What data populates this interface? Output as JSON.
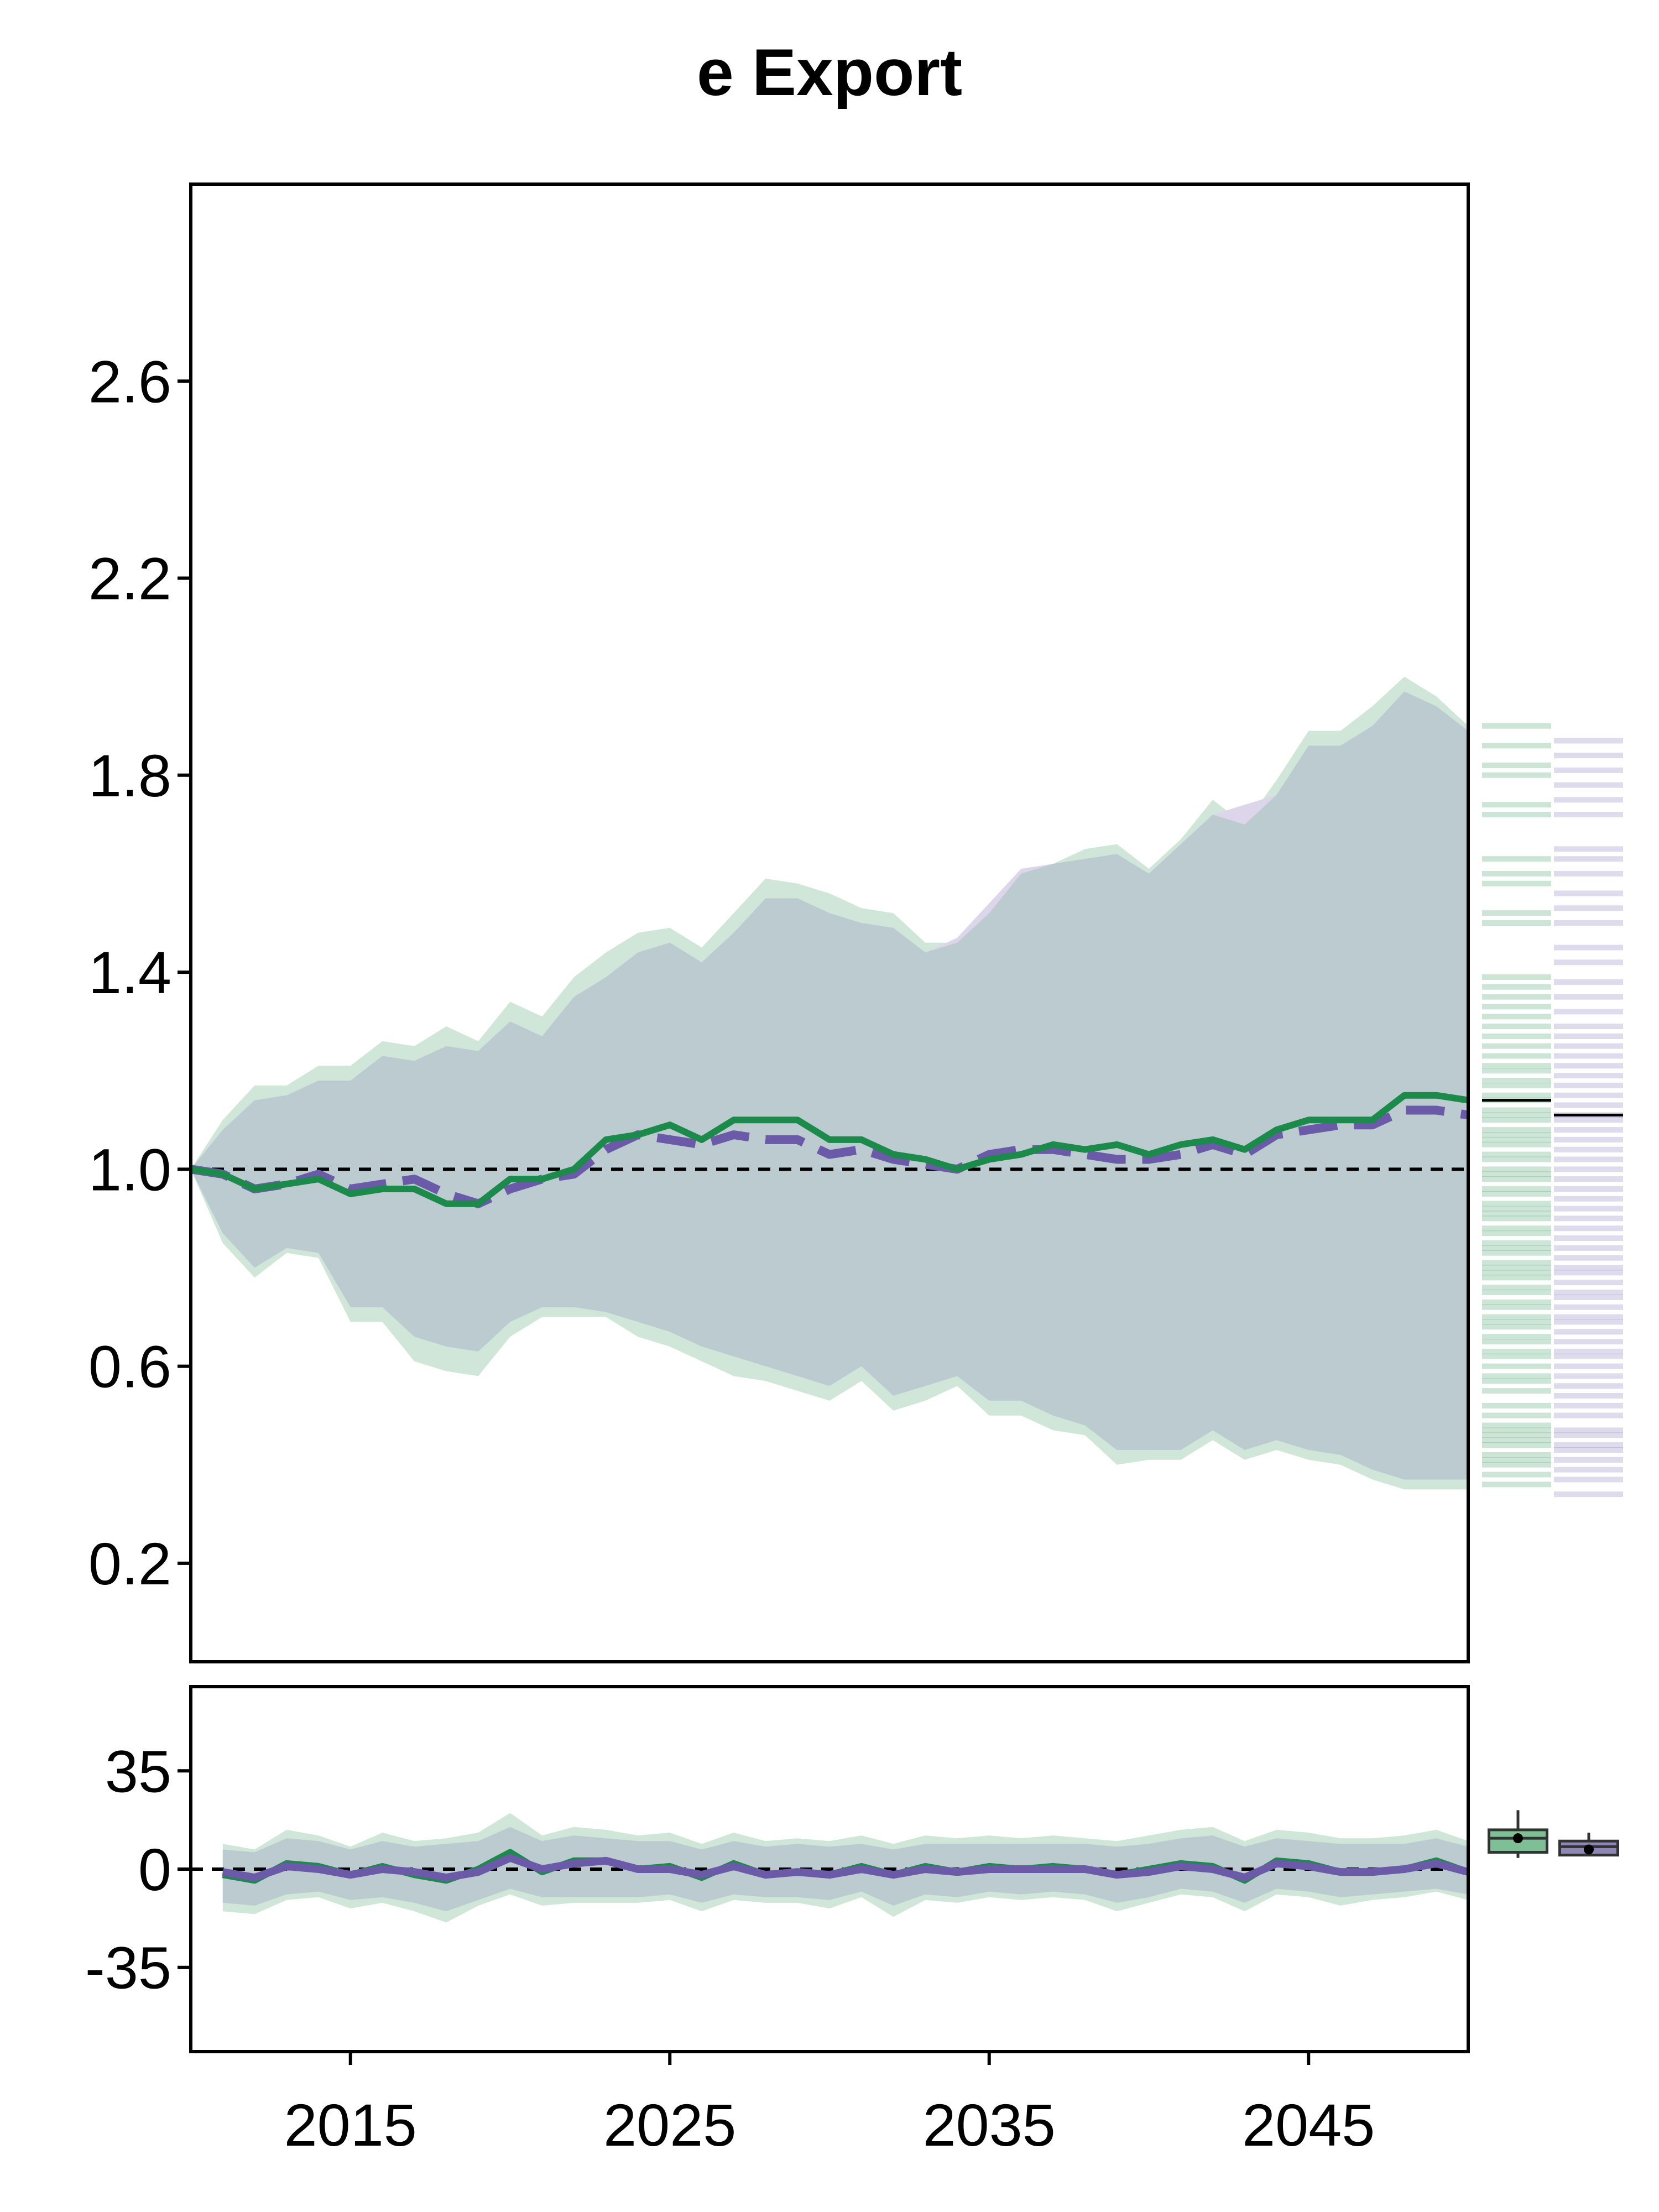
{
  "chart_data": {
    "type": "line",
    "title": "e Export",
    "colors": {
      "green": "#1b8a4a",
      "green_band": "#cfe6d8",
      "purple": "#6a5aa8",
      "purple_band": "#ddd6ea",
      "overlap_band": "#bccbcf",
      "box_green": "#7fbf96",
      "box_purple": "#8f86b8"
    },
    "main": {
      "ylim": [
        0.0,
        3.0
      ],
      "yticks": [
        0.2,
        0.6,
        1.0,
        1.4,
        1.8,
        2.2,
        2.6
      ],
      "ytick_labels": [
        "0.2",
        "0.6",
        "1.0",
        "1.4",
        "1.8",
        "2.2",
        "2.6"
      ],
      "reference_line": 1.0,
      "x": [
        2010,
        2011,
        2012,
        2013,
        2014,
        2015,
        2016,
        2017,
        2018,
        2019,
        2020,
        2021,
        2022,
        2023,
        2024,
        2025,
        2026,
        2027,
        2028,
        2029,
        2030,
        2031,
        2032,
        2033,
        2034,
        2035,
        2036,
        2037,
        2038,
        2039,
        2040,
        2041,
        2042,
        2043,
        2044,
        2045,
        2046,
        2047,
        2048,
        2049,
        2050
      ],
      "series": [
        {
          "values": [
            1.0,
            0.99,
            0.96,
            0.97,
            0.98,
            0.95,
            0.96,
            0.96,
            0.93,
            0.93,
            0.98,
            0.98,
            1.0,
            1.06,
            1.07,
            1.09,
            1.06,
            1.1,
            1.1,
            1.1,
            1.06,
            1.06,
            1.03,
            1.02,
            1.0,
            1.02,
            1.03,
            1.05,
            1.04,
            1.05,
            1.03,
            1.05,
            1.06,
            1.04,
            1.08,
            1.1,
            1.1,
            1.1,
            1.15,
            1.15,
            1.14
          ],
          "band_low": [
            1.0,
            0.85,
            0.78,
            0.83,
            0.82,
            0.69,
            0.69,
            0.61,
            0.59,
            0.58,
            0.66,
            0.7,
            0.7,
            0.7,
            0.66,
            0.64,
            0.61,
            0.58,
            0.57,
            0.55,
            0.53,
            0.57,
            0.51,
            0.53,
            0.56,
            0.5,
            0.5,
            0.47,
            0.46,
            0.4,
            0.41,
            0.41,
            0.45,
            0.41,
            0.43,
            0.41,
            0.4,
            0.37,
            0.35,
            0.35,
            0.35
          ],
          "band_high": [
            1.0,
            1.1,
            1.17,
            1.17,
            1.21,
            1.21,
            1.26,
            1.25,
            1.29,
            1.26,
            1.34,
            1.31,
            1.39,
            1.44,
            1.48,
            1.49,
            1.45,
            1.52,
            1.59,
            1.58,
            1.56,
            1.53,
            1.52,
            1.46,
            1.46,
            1.52,
            1.6,
            1.62,
            1.65,
            1.66,
            1.61,
            1.67,
            1.75,
            1.7,
            1.79,
            1.89,
            1.89,
            1.94,
            2.0,
            1.96,
            1.9
          ]
        },
        {
          "dashed": true,
          "values": [
            1.0,
            0.99,
            0.96,
            0.97,
            0.99,
            0.96,
            0.97,
            0.98,
            0.95,
            0.93,
            0.96,
            0.98,
            0.99,
            1.04,
            1.07,
            1.06,
            1.05,
            1.07,
            1.06,
            1.06,
            1.03,
            1.04,
            1.02,
            1.01,
            1.0,
            1.03,
            1.04,
            1.04,
            1.03,
            1.02,
            1.02,
            1.03,
            1.05,
            1.03,
            1.07,
            1.08,
            1.09,
            1.09,
            1.12,
            1.12,
            1.11
          ],
          "band_low": [
            1.0,
            0.87,
            0.8,
            0.84,
            0.83,
            0.72,
            0.72,
            0.66,
            0.64,
            0.63,
            0.69,
            0.72,
            0.72,
            0.71,
            0.69,
            0.67,
            0.64,
            0.62,
            0.6,
            0.58,
            0.56,
            0.6,
            0.54,
            0.56,
            0.58,
            0.53,
            0.53,
            0.5,
            0.48,
            0.43,
            0.43,
            0.43,
            0.47,
            0.43,
            0.45,
            0.43,
            0.42,
            0.39,
            0.37,
            0.37,
            0.37
          ],
          "band_high": [
            1.0,
            1.08,
            1.14,
            1.15,
            1.18,
            1.18,
            1.23,
            1.22,
            1.25,
            1.24,
            1.3,
            1.27,
            1.35,
            1.39,
            1.44,
            1.46,
            1.42,
            1.48,
            1.55,
            1.55,
            1.52,
            1.5,
            1.49,
            1.44,
            1.47,
            1.54,
            1.61,
            1.62,
            1.63,
            1.64,
            1.6,
            1.66,
            1.72,
            1.74,
            1.76,
            1.86,
            1.86,
            1.9,
            1.97,
            1.94,
            1.89
          ]
        }
      ]
    },
    "bottom": {
      "ylim": [
        -65,
        65
      ],
      "yticks": [
        35,
        0,
        -35
      ],
      "ytick_labels": [
        "35",
        "0",
        "-35"
      ],
      "xlim": [
        2010,
        2050
      ],
      "xticks": [
        2015,
        2025,
        2035,
        2045
      ],
      "xtick_labels": [
        "2015",
        "2025",
        "2035",
        "2045"
      ],
      "reference_line": 0,
      "x": [
        2011,
        2012,
        2013,
        2014,
        2015,
        2016,
        2017,
        2018,
        2019,
        2020,
        2021,
        2022,
        2023,
        2024,
        2025,
        2026,
        2027,
        2028,
        2029,
        2030,
        2031,
        2032,
        2033,
        2034,
        2035,
        2036,
        2037,
        2038,
        2039,
        2040,
        2041,
        2042,
        2043,
        2044,
        2045,
        2046,
        2047,
        2048,
        2049,
        2050
      ],
      "series": [
        {
          "values": [
            -2,
            -4,
            2,
            1,
            -2,
            1,
            -2,
            -4,
            0,
            6,
            -1,
            3,
            3,
            0,
            1,
            -3,
            2,
            -2,
            -1,
            -2,
            1,
            -2,
            1,
            -1,
            1,
            0,
            1,
            0,
            -2,
            0,
            2,
            1,
            -4,
            3,
            2,
            -1,
            -1,
            0,
            3,
            -1
          ],
          "band_low": [
            -15,
            -16,
            -11,
            -10,
            -14,
            -12,
            -15,
            -19,
            -13,
            -9,
            -13,
            -12,
            -12,
            -12,
            -11,
            -15,
            -11,
            -12,
            -12,
            -14,
            -10,
            -17,
            -11,
            -12,
            -10,
            -11,
            -10,
            -11,
            -15,
            -12,
            -9,
            -10,
            -15,
            -9,
            -10,
            -13,
            -11,
            -10,
            -8,
            -11
          ],
          "band_high": [
            9,
            7,
            14,
            12,
            8,
            13,
            10,
            11,
            13,
            20,
            12,
            15,
            14,
            12,
            13,
            9,
            13,
            10,
            11,
            10,
            12,
            9,
            12,
            11,
            12,
            11,
            12,
            11,
            10,
            12,
            14,
            15,
            10,
            14,
            13,
            11,
            11,
            12,
            14,
            10
          ]
        },
        {
          "dashed": false,
          "values": [
            -1,
            -3,
            1,
            0,
            -2,
            0,
            -1,
            -3,
            -1,
            4,
            0,
            2,
            3,
            0,
            0,
            -2,
            1,
            -2,
            -1,
            -2,
            0,
            -2,
            0,
            -1,
            0,
            0,
            0,
            0,
            -2,
            -1,
            1,
            0,
            -3,
            2,
            1,
            -1,
            -1,
            0,
            2,
            -1
          ],
          "band_low": [
            -12,
            -13,
            -9,
            -8,
            -11,
            -10,
            -12,
            -15,
            -11,
            -7,
            -10,
            -10,
            -10,
            -10,
            -9,
            -12,
            -9,
            -10,
            -10,
            -11,
            -8,
            -13,
            -9,
            -10,
            -8,
            -9,
            -8,
            -9,
            -12,
            -10,
            -7,
            -8,
            -12,
            -7,
            -8,
            -10,
            -9,
            -8,
            -7,
            -9
          ],
          "band_high": [
            7,
            6,
            11,
            10,
            7,
            10,
            8,
            9,
            10,
            15,
            10,
            12,
            11,
            10,
            10,
            7,
            10,
            8,
            9,
            8,
            9,
            7,
            9,
            9,
            9,
            9,
            9,
            9,
            8,
            9,
            11,
            12,
            8,
            11,
            10,
            9,
            9,
            9,
            11,
            8
          ]
        }
      ]
    },
    "side_distribution": {
      "green_median": 1.14,
      "purple_median": 1.11,
      "green_values": [
        0.36,
        0.38,
        0.4,
        0.41,
        0.42,
        0.44,
        0.45,
        0.46,
        0.47,
        0.48,
        0.5,
        0.52,
        0.55,
        0.57,
        0.58,
        0.6,
        0.62,
        0.63,
        0.65,
        0.66,
        0.68,
        0.69,
        0.7,
        0.72,
        0.73,
        0.75,
        0.76,
        0.78,
        0.79,
        0.8,
        0.81,
        0.83,
        0.84,
        0.85,
        0.87,
        0.88,
        0.9,
        0.91,
        0.92,
        0.93,
        0.95,
        0.96,
        0.98,
        0.99,
        1.0,
        1.02,
        1.03,
        1.05,
        1.06,
        1.07,
        1.08,
        1.1,
        1.11,
        1.12,
        1.14,
        1.15,
        1.17,
        1.18,
        1.2,
        1.21,
        1.23,
        1.25,
        1.27,
        1.29,
        1.31,
        1.33,
        1.35,
        1.37,
        1.39,
        1.5,
        1.52,
        1.58,
        1.6,
        1.63,
        1.72,
        1.74,
        1.8,
        1.82,
        1.86,
        1.9
      ],
      "purple_values": [
        0.34,
        0.37,
        0.39,
        0.41,
        0.43,
        0.44,
        0.46,
        0.47,
        0.5,
        0.52,
        0.54,
        0.56,
        0.58,
        0.6,
        0.62,
        0.63,
        0.65,
        0.67,
        0.69,
        0.7,
        0.72,
        0.74,
        0.75,
        0.77,
        0.79,
        0.8,
        0.82,
        0.84,
        0.86,
        0.88,
        0.9,
        0.92,
        0.94,
        0.96,
        0.98,
        1.0,
        1.02,
        1.04,
        1.06,
        1.08,
        1.1,
        1.11,
        1.13,
        1.15,
        1.17,
        1.19,
        1.21,
        1.23,
        1.25,
        1.27,
        1.29,
        1.32,
        1.35,
        1.38,
        1.42,
        1.45,
        1.5,
        1.53,
        1.56,
        1.6,
        1.63,
        1.65,
        1.72,
        1.75,
        1.78,
        1.81,
        1.84,
        1.87
      ],
      "box_green": {
        "min": 4,
        "q1": 6,
        "median": 11,
        "q3": 14,
        "max": 21,
        "mean": 11
      },
      "box_purple": {
        "min": 5,
        "q1": 5,
        "median": 8,
        "q3": 10,
        "max": 13,
        "mean": 7
      }
    }
  }
}
